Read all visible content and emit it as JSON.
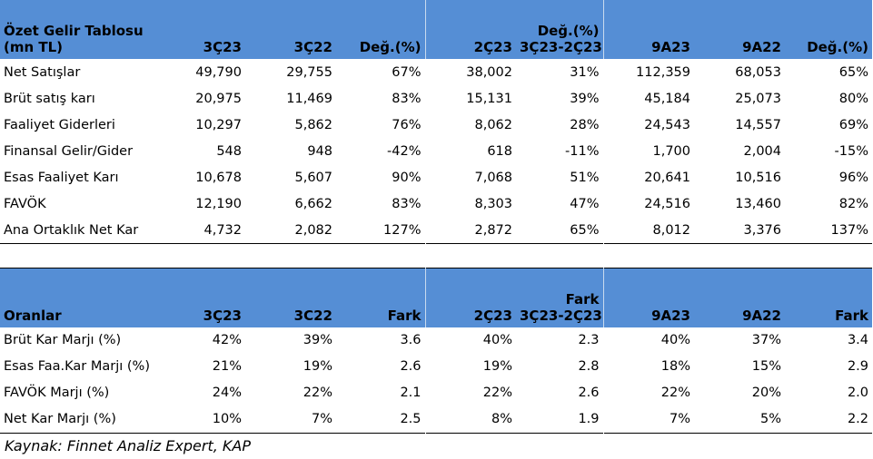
{
  "table1": {
    "header": {
      "label_line1": "Özet Gelir Tablosu",
      "label_line2": "(mn TL)",
      "cols": [
        "3Ç23",
        "3Ç22",
        "Değ.(%)",
        "2Ç23",
        "Değ.(%) 3Ç23-2Ç23",
        "9A23",
        "9A22",
        "Değ.(%)"
      ],
      "col5_line1": "Değ.(%)",
      "col5_line2": "3Ç23-2Ç23"
    },
    "rows": [
      {
        "label": "Net Satışlar",
        "v": [
          "49,790",
          "29,755",
          "67%",
          "38,002",
          "31%",
          "112,359",
          "68,053",
          "65%"
        ]
      },
      {
        "label": "Brüt satış karı",
        "v": [
          "20,975",
          "11,469",
          "83%",
          "15,131",
          "39%",
          "45,184",
          "25,073",
          "80%"
        ]
      },
      {
        "label": "Faaliyet Giderleri",
        "v": [
          "10,297",
          "5,862",
          "76%",
          "8,062",
          "28%",
          "24,543",
          "14,557",
          "69%"
        ]
      },
      {
        "label": "Finansal Gelir/Gider",
        "v": [
          "548",
          "948",
          "-42%",
          "618",
          "-11%",
          "1,700",
          "2,004",
          "-15%"
        ]
      },
      {
        "label": "Esas Faaliyet Karı",
        "v": [
          "10,678",
          "5,607",
          "90%",
          "7,068",
          "51%",
          "20,641",
          "10,516",
          "96%"
        ]
      },
      {
        "label": "FAVÖK",
        "v": [
          "12,190",
          "6,662",
          "83%",
          "8,303",
          "47%",
          "24,516",
          "13,460",
          "82%"
        ]
      },
      {
        "label": "Ana Ortaklık Net Kar",
        "v": [
          "4,732",
          "2,082",
          "127%",
          "2,872",
          "65%",
          "8,012",
          "3,376",
          "137%"
        ]
      }
    ]
  },
  "table2": {
    "header": {
      "label": "Oranlar",
      "cols": [
        "3Ç23",
        "3C22",
        "Fark",
        "2Ç23",
        "Fark 3Ç23-2Ç23",
        "9A23",
        "9A22",
        "Fark"
      ],
      "col5_line1": "Fark",
      "col5_line2": "3Ç23-2Ç23"
    },
    "rows": [
      {
        "label": "Brüt Kar Marjı (%)",
        "v": [
          "42%",
          "39%",
          "3.6",
          "40%",
          "2.3",
          "40%",
          "37%",
          "3.4"
        ]
      },
      {
        "label": "Esas Faa.Kar Marjı (%)",
        "v": [
          "21%",
          "19%",
          "2.6",
          "19%",
          "2.8",
          "18%",
          "15%",
          "2.9"
        ]
      },
      {
        "label": "FAVÖK Marjı (%)",
        "v": [
          "24%",
          "22%",
          "2.1",
          "22%",
          "2.6",
          "22%",
          "20%",
          "2.0"
        ]
      },
      {
        "label": "Net Kar Marjı (%)",
        "v": [
          "10%",
          "7%",
          "2.5",
          "8%",
          "1.9",
          "7%",
          "5%",
          "2.2"
        ]
      }
    ]
  },
  "source": "Kaynak: Finnet Analiz Expert, KAP",
  "colors": {
    "header_bg": "#558ed5"
  }
}
